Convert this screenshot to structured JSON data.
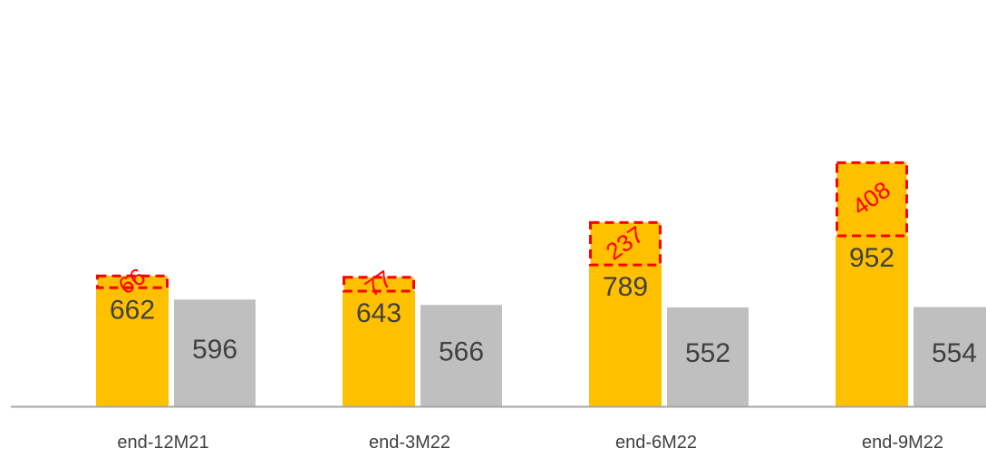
{
  "chart_data": {
    "type": "bar",
    "stacked_first_series": true,
    "categories": [
      "end-12M21",
      "end-3M22",
      "end-6M22",
      "end-9M22"
    ],
    "series": [
      {
        "values": [
          662,
          643,
          789,
          952
        ],
        "color": "#FFC000"
      },
      {
        "values": [
          66,
          77,
          237,
          408
        ],
        "color": "#FFC000",
        "style": "dashed-red-outline",
        "stacked_on": 0,
        "label_rotated": true
      },
      {
        "values": [
          596,
          566,
          552,
          554
        ],
        "color": "#BFBFBF"
      }
    ],
    "label_color": "#404040",
    "delta_label_color": "#FF0000",
    "axis_color": "#A6A6A6",
    "ylim": [
      0,
      1400
    ],
    "grid": false,
    "legend": "none",
    "title": "",
    "xlabel": "",
    "ylabel": ""
  }
}
